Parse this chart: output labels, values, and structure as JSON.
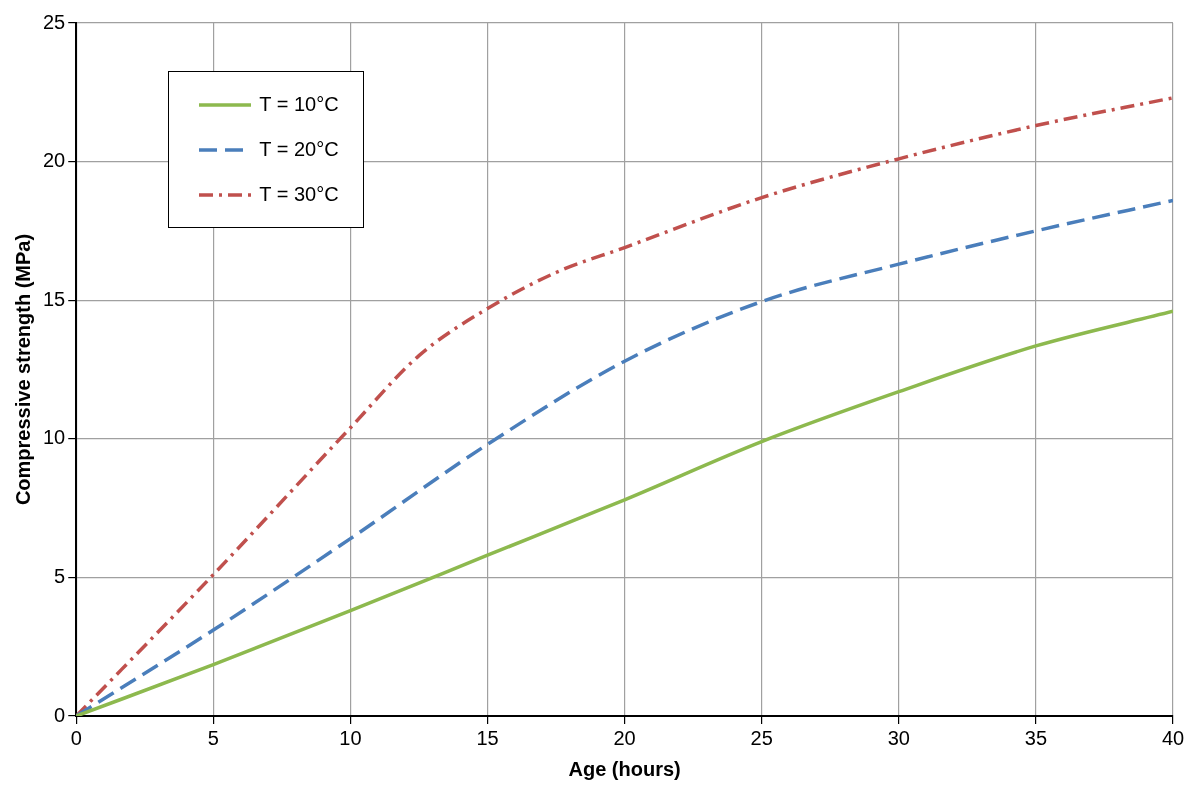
{
  "chart_data": {
    "type": "line",
    "xlabel": "Age (hours)",
    "ylabel": "Compressive strength (MPa)",
    "xlim": [
      0,
      40
    ],
    "xticks": [
      0,
      5,
      10,
      15,
      20,
      25,
      30,
      35,
      40
    ],
    "ylim": [
      0,
      25
    ],
    "yticks": [
      0,
      5,
      10,
      15,
      20,
      25
    ],
    "grid": true,
    "legend": "top left",
    "marker": "none",
    "series": [
      {
        "name": "T = 10°C",
        "color": "#8db94e",
        "line_style": "solid",
        "x": [
          0,
          5,
          10,
          15,
          20,
          25,
          30,
          35,
          40
        ],
        "values": [
          0,
          1.85,
          3.8,
          5.8,
          7.8,
          9.9,
          11.7,
          13.35,
          14.6
        ]
      },
      {
        "name": "T = 20°C",
        "color": "#4a7ebb",
        "line_style": "dashed",
        "x": [
          0,
          5,
          10,
          15,
          20,
          25,
          30,
          35,
          40
        ],
        "values": [
          0,
          3.1,
          6.4,
          9.8,
          12.8,
          14.95,
          16.3,
          17.5,
          18.6
        ]
      },
      {
        "name": "T = 30°C",
        "color": "#c0504d",
        "line_style": "dashdot",
        "x": [
          0,
          5,
          10,
          12.5,
          15,
          17.5,
          20,
          25,
          30,
          35,
          40
        ],
        "values": [
          0,
          5.1,
          10.4,
          13,
          14.7,
          16,
          16.9,
          18.7,
          20.1,
          21.3,
          22.3
        ]
      }
    ]
  }
}
